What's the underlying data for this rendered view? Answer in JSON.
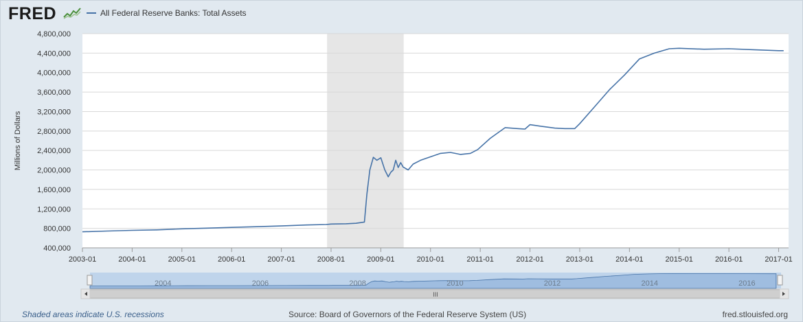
{
  "header": {
    "logo_text": "FRED",
    "series_title": "All Federal Reserve Banks: Total Assets"
  },
  "colors": {
    "line": "#4572a7",
    "recession": "#e6e6e6",
    "navigator_fill": "#9fbde0"
  },
  "footer": {
    "note": "Shaded areas indicate U.S. recessions",
    "source": "Source: Board of Governors of the Federal Reserve System (US)",
    "site": "fred.stlouisfed.org"
  },
  "navigator": {
    "year_labels": [
      "2004",
      "2006",
      "2008",
      "2010",
      "2012",
      "2014",
      "2016"
    ],
    "grip_glyph": "III"
  },
  "chart_data": {
    "type": "line",
    "title": "",
    "ylabel": "Millions of Dollars",
    "xlabel": "",
    "ylim": [
      400000,
      4800000
    ],
    "yticks": [
      400000,
      800000,
      1200000,
      1600000,
      2000000,
      2400000,
      2800000,
      3200000,
      3600000,
      4000000,
      4400000,
      4800000
    ],
    "ytick_labels": [
      "400,000",
      "800,000",
      "1,200,000",
      "1,600,000",
      "2,000,000",
      "2,400,000",
      "2,800,000",
      "3,200,000",
      "3,600,000",
      "4,000,000",
      "4,400,000",
      "4,800,000"
    ],
    "xlim": [
      2003.0,
      2017.2
    ],
    "xticks": [
      2003,
      2004,
      2005,
      2006,
      2007,
      2008,
      2009,
      2010,
      2011,
      2012,
      2013,
      2014,
      2015,
      2016,
      2017
    ],
    "xtick_labels": [
      "2003-01",
      "2004-01",
      "2005-01",
      "2006-01",
      "2007-01",
      "2008-01",
      "2009-01",
      "2010-01",
      "2011-01",
      "2012-01",
      "2013-01",
      "2014-01",
      "2015-01",
      "2016-01",
      "2017-01"
    ],
    "grid": true,
    "recession": [
      2007.92,
      2009.46
    ],
    "series": [
      {
        "name": "All Federal Reserve Banks: Total Assets",
        "x": [
          2003.0,
          2003.5,
          2004.0,
          2004.5,
          2005.0,
          2005.5,
          2006.0,
          2006.5,
          2007.0,
          2007.5,
          2007.9,
          2008.0,
          2008.3,
          2008.5,
          2008.67,
          2008.72,
          2008.78,
          2008.85,
          2008.92,
          2009.0,
          2009.08,
          2009.15,
          2009.2,
          2009.25,
          2009.3,
          2009.35,
          2009.4,
          2009.45,
          2009.55,
          2009.65,
          2009.8,
          2010.0,
          2010.2,
          2010.4,
          2010.6,
          2010.8,
          2010.95,
          2011.2,
          2011.5,
          2011.75,
          2011.9,
          2012.0,
          2012.2,
          2012.5,
          2012.7,
          2012.9,
          2013.0,
          2013.3,
          2013.6,
          2013.9,
          2014.2,
          2014.5,
          2014.8,
          2015.0,
          2015.5,
          2016.0,
          2016.5,
          2017.0,
          2017.1
        ],
        "y": [
          730000,
          745000,
          760000,
          770000,
          790000,
          805000,
          820000,
          835000,
          850000,
          870000,
          880000,
          890000,
          895000,
          905000,
          930000,
          1500000,
          2000000,
          2260000,
          2200000,
          2250000,
          2000000,
          1860000,
          1950000,
          2000000,
          2200000,
          2050000,
          2150000,
          2060000,
          2000000,
          2120000,
          2200000,
          2270000,
          2340000,
          2360000,
          2320000,
          2340000,
          2420000,
          2650000,
          2870000,
          2850000,
          2840000,
          2930000,
          2900000,
          2860000,
          2850000,
          2850000,
          2950000,
          3300000,
          3650000,
          3950000,
          4280000,
          4400000,
          4490000,
          4500000,
          4480000,
          4490000,
          4470000,
          4450000,
          4450000
        ]
      }
    ]
  }
}
